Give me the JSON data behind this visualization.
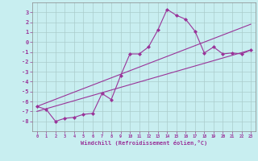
{
  "xlabel": "Windchill (Refroidissement éolien,°C)",
  "bg_color": "#c8eef0",
  "line_color": "#993399",
  "grid_color": "#aacccc",
  "xlim": [
    -0.5,
    23.5
  ],
  "ylim": [
    -9,
    4
  ],
  "xticks": [
    0,
    1,
    2,
    3,
    4,
    5,
    6,
    7,
    8,
    9,
    10,
    11,
    12,
    13,
    14,
    15,
    16,
    17,
    18,
    19,
    20,
    21,
    22,
    23
  ],
  "yticks": [
    -8,
    -7,
    -6,
    -5,
    -4,
    -3,
    -2,
    -1,
    0,
    1,
    2,
    3
  ],
  "line1_x": [
    0,
    1,
    2,
    3,
    4,
    5,
    6,
    7,
    8,
    9,
    10,
    11,
    12,
    13,
    14,
    15,
    16,
    17,
    18,
    19,
    20,
    21,
    22,
    23
  ],
  "line1_y": [
    -6.5,
    -6.8,
    -8.0,
    -7.7,
    -7.6,
    -7.3,
    -7.2,
    -5.2,
    -5.8,
    -3.4,
    -1.2,
    -1.2,
    -0.5,
    1.2,
    3.3,
    2.7,
    2.3,
    1.1,
    -1.1,
    -0.5,
    -1.2,
    -1.1,
    -1.2,
    -0.8
  ],
  "line2_x": [
    0,
    23
  ],
  "line2_y": [
    -7.0,
    -0.8
  ],
  "line3_x": [
    0,
    23
  ],
  "line3_y": [
    -6.5,
    1.8
  ]
}
